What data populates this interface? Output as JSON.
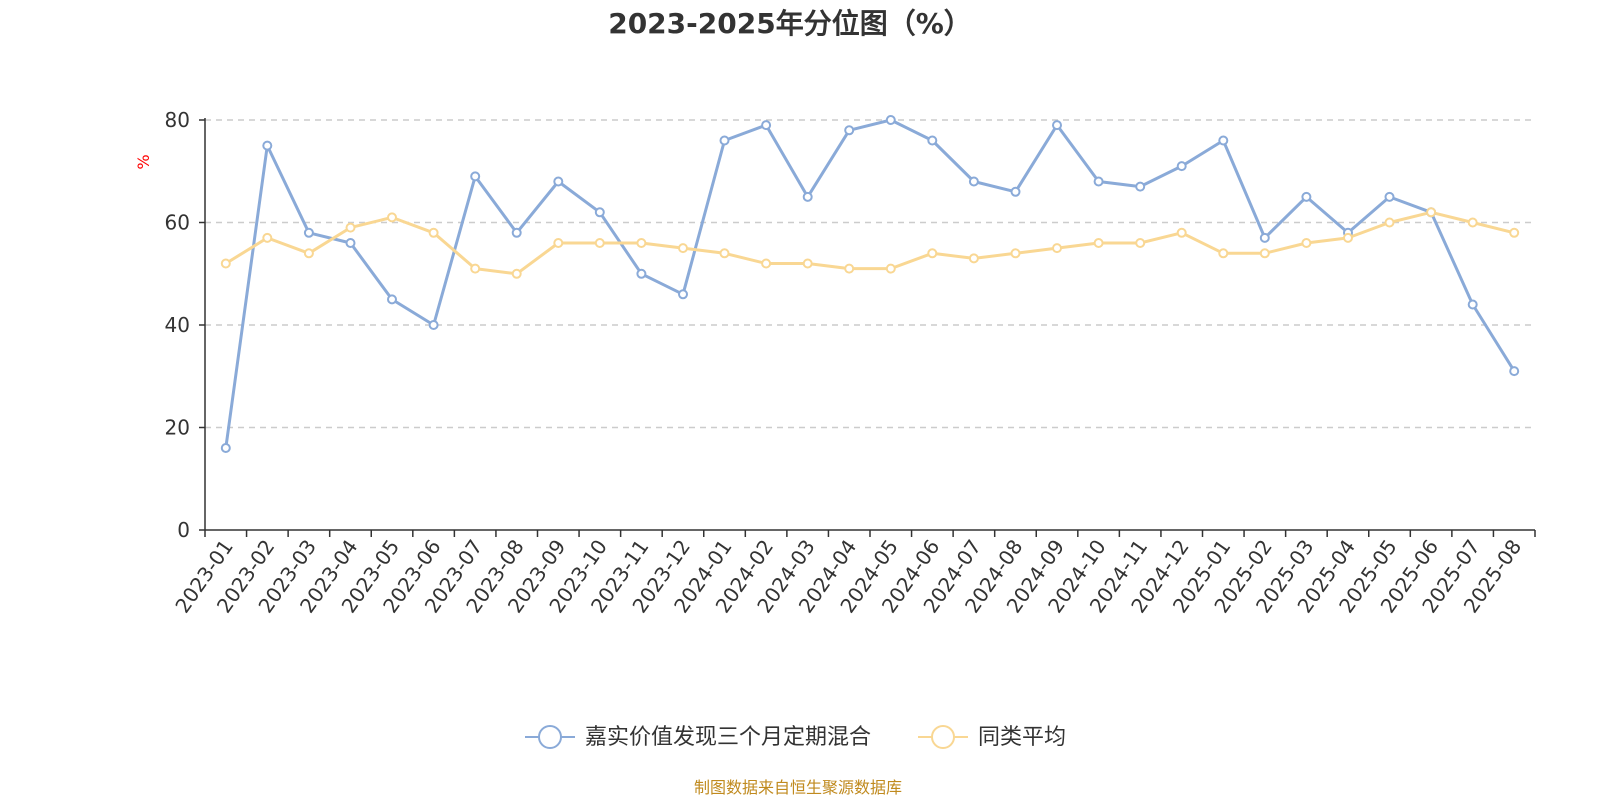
{
  "chart_data": {
    "type": "line",
    "title": "2023-2025年分位图（%）",
    "ylabel": "%",
    "ylim": [
      0,
      80
    ],
    "yticks": [
      0,
      20,
      40,
      60,
      80
    ],
    "grid": true,
    "legend_position": "bottom-center",
    "categories": [
      "2023-01",
      "2023-02",
      "2023-03",
      "2023-04",
      "2023-05",
      "2023-06",
      "2023-07",
      "2023-08",
      "2023-09",
      "2023-10",
      "2023-11",
      "2023-12",
      "2024-01",
      "2024-02",
      "2024-03",
      "2024-04",
      "2024-05",
      "2024-06",
      "2024-07",
      "2024-08",
      "2024-09",
      "2024-10",
      "2024-11",
      "2024-12",
      "2025-01",
      "2025-02",
      "2025-03",
      "2025-04",
      "2025-05",
      "2025-06",
      "2025-07",
      "2025-08"
    ],
    "series": [
      {
        "name": "嘉实价值发现三个月定期混合",
        "color": "#8aaad8",
        "values": [
          16,
          75,
          58,
          56,
          45,
          40,
          69,
          58,
          68,
          62,
          50,
          46,
          76,
          79,
          65,
          78,
          80,
          76,
          68,
          66,
          79,
          68,
          67,
          71,
          76,
          57,
          65,
          58,
          65,
          62,
          44,
          31
        ]
      },
      {
        "name": "同类平均",
        "color": "#f9d793",
        "values": [
          52,
          57,
          54,
          59,
          61,
          58,
          51,
          50,
          56,
          56,
          56,
          55,
          54,
          52,
          52,
          51,
          51,
          54,
          53,
          54,
          55,
          56,
          56,
          58,
          54,
          54,
          56,
          57,
          60,
          62,
          60,
          58
        ]
      }
    ]
  },
  "source_text": "制图数据来自恒生聚源数据库"
}
